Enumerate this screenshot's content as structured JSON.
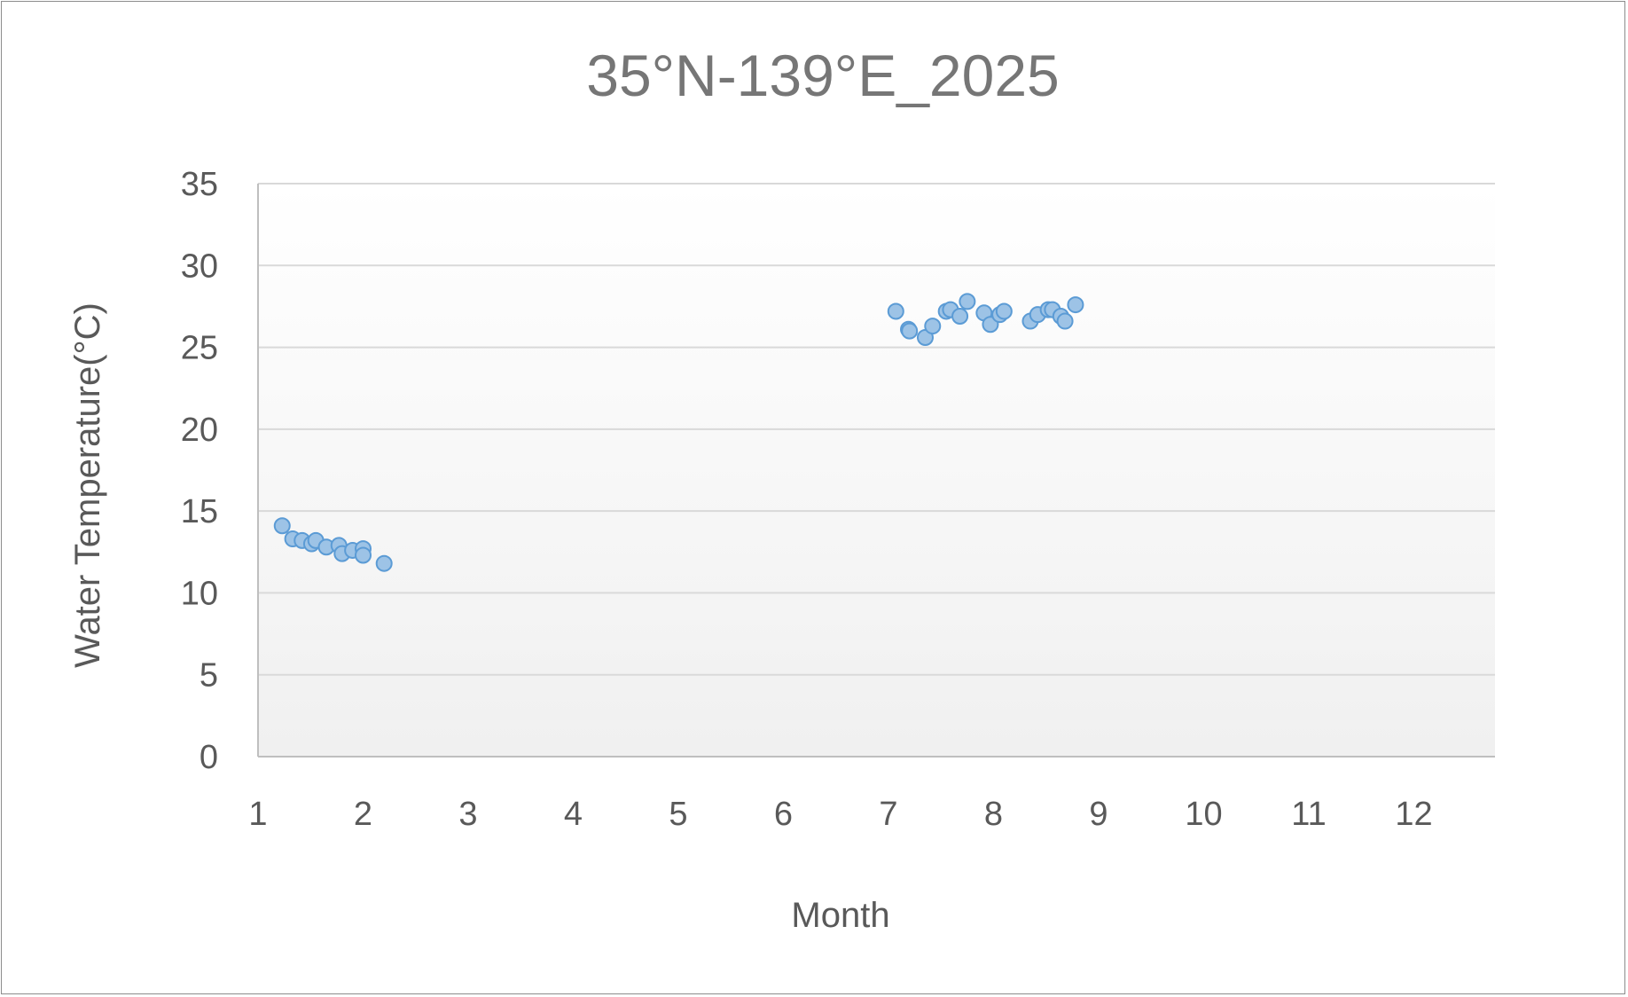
{
  "chart_data": {
    "type": "scatter",
    "title": "35°N-139°E_2025",
    "xlabel": "Month",
    "ylabel": "Water Temperature(°C)",
    "xlim": [
      1,
      12.8
    ],
    "ylim": [
      0,
      35
    ],
    "xticks": [
      1,
      2,
      3,
      4,
      5,
      6,
      7,
      8,
      9,
      10,
      11,
      12
    ],
    "yticks": [
      0,
      5,
      10,
      15,
      20,
      25,
      30,
      35
    ],
    "grid": true,
    "legend": "none",
    "colors": {
      "marker_fill": "#9dc3e6",
      "marker_edge": "#5b9bd5",
      "grid": "#d9d9d9",
      "axis": "#bfbfbf"
    },
    "series": [
      {
        "points": [
          {
            "x": 1.23,
            "y": 14.1
          },
          {
            "x": 1.33,
            "y": 13.3
          },
          {
            "x": 1.42,
            "y": 13.2
          },
          {
            "x": 1.51,
            "y": 13.0
          },
          {
            "x": 1.55,
            "y": 13.2
          },
          {
            "x": 1.65,
            "y": 12.8
          },
          {
            "x": 1.77,
            "y": 12.9
          },
          {
            "x": 1.8,
            "y": 12.4
          },
          {
            "x": 1.9,
            "y": 12.6
          },
          {
            "x": 2.0,
            "y": 12.7
          },
          {
            "x": 2.0,
            "y": 12.3
          },
          {
            "x": 2.2,
            "y": 11.8
          },
          {
            "x": 7.07,
            "y": 27.2
          },
          {
            "x": 7.19,
            "y": 26.1
          },
          {
            "x": 7.2,
            "y": 26.0
          },
          {
            "x": 7.35,
            "y": 25.6
          },
          {
            "x": 7.42,
            "y": 26.3
          },
          {
            "x": 7.55,
            "y": 27.2
          },
          {
            "x": 7.59,
            "y": 27.3
          },
          {
            "x": 7.68,
            "y": 26.9
          },
          {
            "x": 7.75,
            "y": 27.8
          },
          {
            "x": 7.91,
            "y": 27.1
          },
          {
            "x": 7.97,
            "y": 26.4
          },
          {
            "x": 8.06,
            "y": 27.0
          },
          {
            "x": 8.1,
            "y": 27.2
          },
          {
            "x": 8.35,
            "y": 26.6
          },
          {
            "x": 8.42,
            "y": 27.0
          },
          {
            "x": 8.52,
            "y": 27.3
          },
          {
            "x": 8.56,
            "y": 27.3
          },
          {
            "x": 8.64,
            "y": 26.9
          },
          {
            "x": 8.68,
            "y": 26.6
          },
          {
            "x": 8.78,
            "y": 27.6
          }
        ]
      }
    ]
  }
}
